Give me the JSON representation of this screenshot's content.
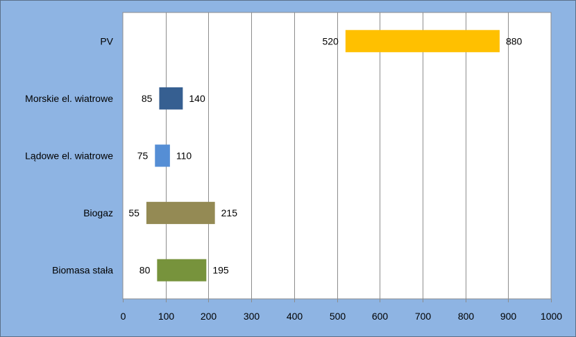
{
  "chart_data": {
    "type": "bar",
    "orientation": "horizontal",
    "subtype": "floating-range",
    "categories": [
      "PV",
      "Morskie el. wiatrowe",
      "Lądowe el. wiatrowe",
      "Biogaz",
      "Biomasa stała"
    ],
    "ranges": [
      {
        "category": "PV",
        "low": 520,
        "high": 880,
        "color": "#ffc000"
      },
      {
        "category": "Morskie el. wiatrowe",
        "low": 85,
        "high": 140,
        "color": "#365f91"
      },
      {
        "category": "Lądowe el. wiatrowe",
        "low": 75,
        "high": 110,
        "color": "#558ed5"
      },
      {
        "category": "Biogaz",
        "low": 55,
        "high": 215,
        "color": "#948a54"
      },
      {
        "category": "Biomasa stała",
        "low": 80,
        "high": 195,
        "color": "#77933c"
      }
    ],
    "xlim": [
      0,
      1000
    ],
    "xticks": [
      0,
      100,
      200,
      300,
      400,
      500,
      600,
      700,
      800,
      900,
      1000
    ],
    "title": "",
    "xlabel": "",
    "ylabel": "",
    "grid": "vertical",
    "legend": "none"
  }
}
